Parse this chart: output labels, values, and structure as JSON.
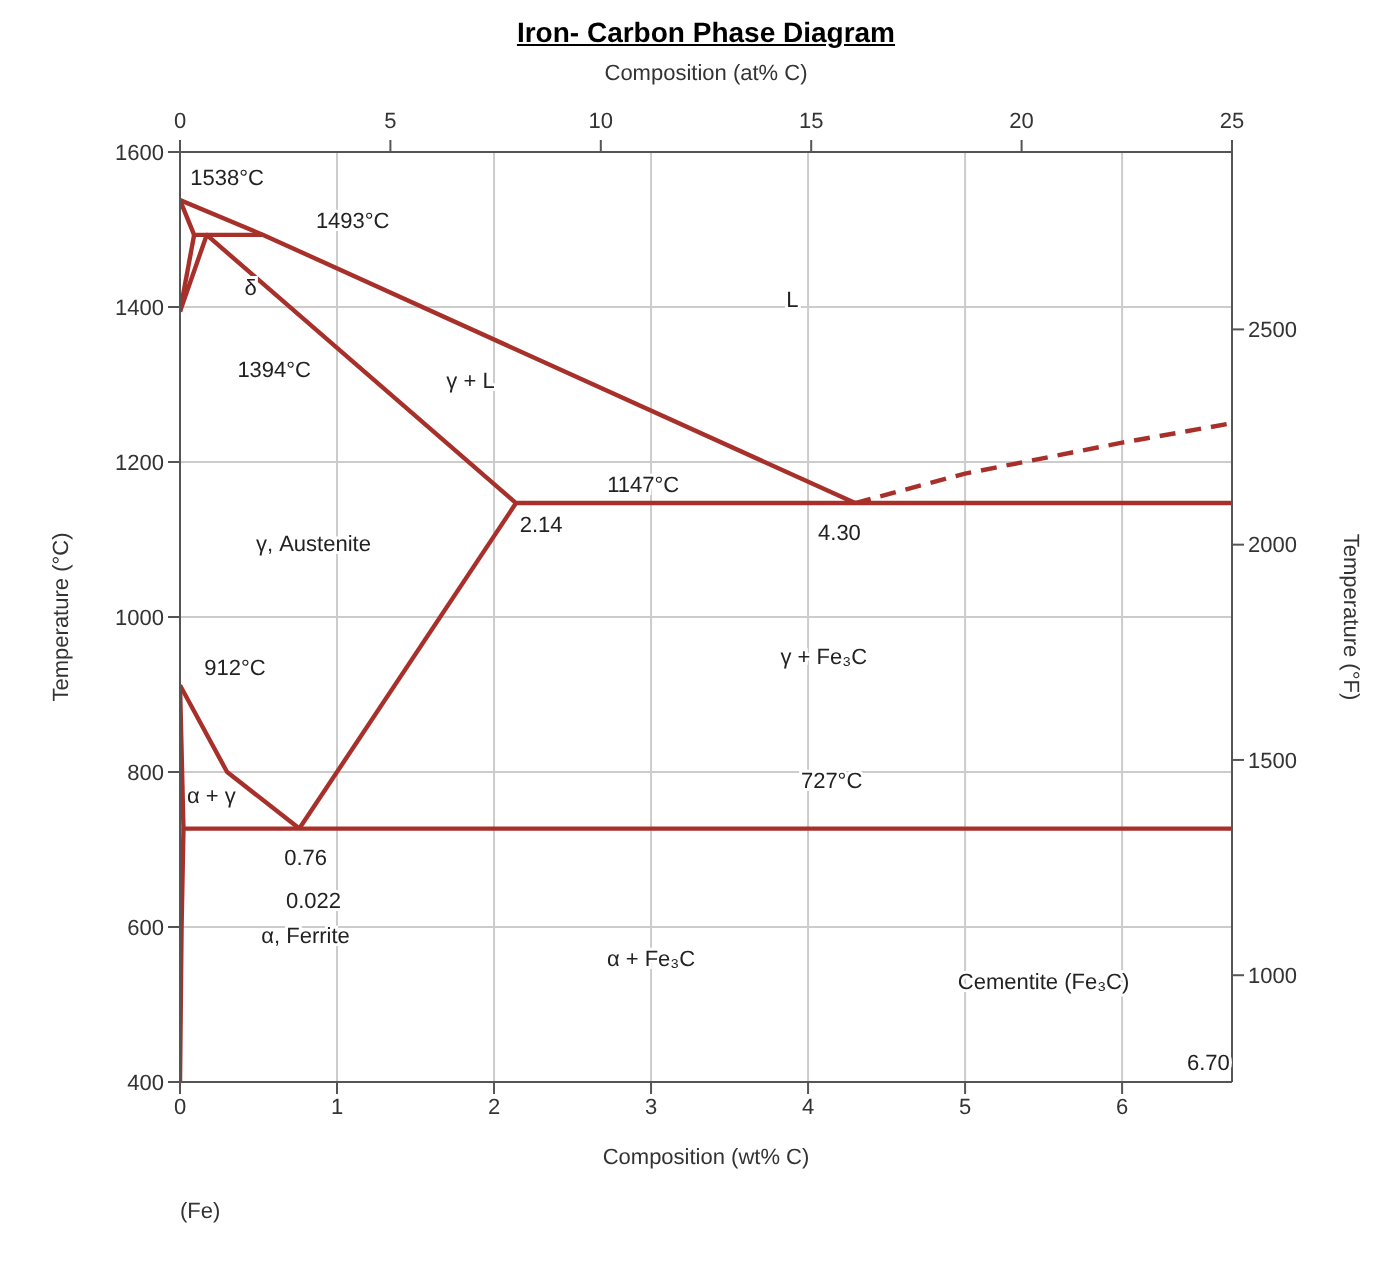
{
  "chart_data": {
    "type": "line",
    "title": "Iron- Carbon Phase Diagram",
    "xlabel": "Composition (wt% C)",
    "x2label": "Composition (at% C)",
    "ylabel": "Temperature (°C)",
    "y2label": "Temperature (°F)",
    "xlim": [
      0,
      6.7
    ],
    "xticks": [
      0,
      1,
      2,
      3,
      4,
      5,
      6
    ],
    "x2lim": [
      0,
      25
    ],
    "x2ticks": [
      0,
      5,
      10,
      15,
      20,
      25
    ],
    "ylim": [
      400,
      1600
    ],
    "yticks": [
      400,
      600,
      800,
      1000,
      1200,
      1400,
      1600
    ],
    "y2lim": [
      752,
      2912
    ],
    "y2ticks": [
      1000,
      1500,
      2000,
      2500
    ],
    "grid": true,
    "marker": "none",
    "line_style": "solid",
    "series": [
      {
        "color": "#a8302a",
        "x": [
          0,
          0.53,
          4.3
        ],
        "values": [
          1538,
          1493,
          1147
        ]
      },
      {
        "color": "#a8302a",
        "x": [
          4.3,
          5,
          6,
          6.7
        ],
        "values": [
          1147,
          1185,
          1225,
          1250
        ],
        "line_style": "dashed"
      },
      {
        "color": "#a8302a",
        "x": [
          0,
          0.09,
          0.53
        ],
        "values": [
          1538,
          1493,
          1493
        ]
      },
      {
        "color": "#a8302a",
        "x": [
          0,
          0.09
        ],
        "values": [
          1394,
          1493
        ]
      },
      {
        "color": "#a8302a",
        "x": [
          0,
          0.17,
          2.14,
          6.7
        ],
        "values": [
          1394,
          1493,
          1147,
          1147
        ]
      },
      {
        "color": "#a8302a",
        "x": [
          2.14,
          0.76
        ],
        "values": [
          1147,
          727
        ]
      },
      {
        "color": "#a8302a",
        "x": [
          0,
          0.3,
          0.76
        ],
        "values": [
          912,
          800,
          727
        ]
      },
      {
        "color": "#a8302a",
        "x": [
          0,
          0.022,
          6.7
        ],
        "values": [
          912,
          727,
          727
        ]
      },
      {
        "color": "#a8302a",
        "x": [
          0.022,
          0.01,
          0
        ],
        "values": [
          727,
          600,
          400
        ]
      }
    ],
    "annotations": [
      "1538°C",
      "1493°C",
      "δ",
      "1394°C",
      "γ + L",
      "L",
      "1147°C",
      "2.14",
      "4.30",
      "γ, Austenite",
      "912°C",
      "γ + Fe₃C",
      "727°C",
      "α + γ",
      "0.76",
      "0.022",
      "α, Ferrite",
      "α + Fe₃C",
      "Cementite (Fe₃C)",
      "6.70",
      "(Fe)"
    ]
  }
}
